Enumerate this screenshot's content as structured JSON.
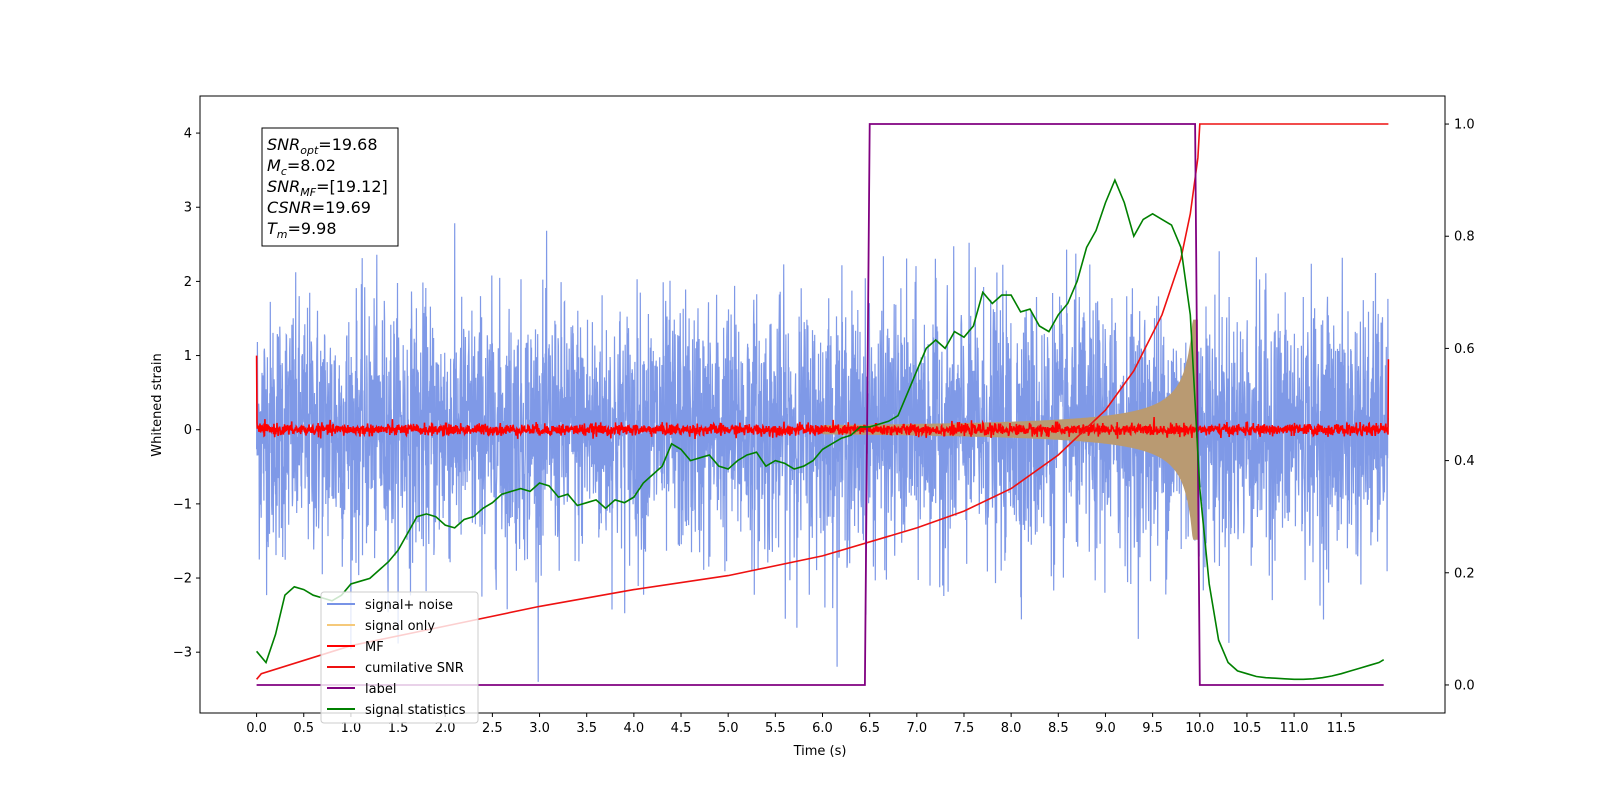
{
  "chart_data": {
    "type": "line",
    "xlabel": "Time (s)",
    "ylabel": "Whitened strain",
    "xlim": [
      -0.6,
      12.6
    ],
    "ylim": [
      -3.82,
      4.5
    ],
    "y2lim": [
      -0.05,
      1.05
    ],
    "x_ticks": [
      "0.0",
      "0.5",
      "1.0",
      "1.5",
      "2.0",
      "2.5",
      "3.0",
      "3.5",
      "4.0",
      "4.5",
      "5.0",
      "5.5",
      "6.0",
      "6.5",
      "7.0",
      "7.5",
      "8.0",
      "8.5",
      "9.0",
      "9.5",
      "10.0",
      "10.5",
      "11.0",
      "11.5"
    ],
    "y_ticks": [
      "−3",
      "−2",
      "−1",
      "0",
      "1",
      "2",
      "3",
      "4"
    ],
    "y2_ticks": [
      "0.0",
      "0.2",
      "0.4",
      "0.6",
      "0.8",
      "1.0"
    ],
    "annotation_box": [
      {
        "sym": "SNR",
        "sub": "opt",
        "val": "=19.68"
      },
      {
        "sym": "M",
        "sub": "c",
        "val": "=8.02"
      },
      {
        "sym": "SNR",
        "sub": "MF",
        "val": "=[19.12]"
      },
      {
        "sym": "CSNR",
        "sub": "",
        "val": "=19.69"
      },
      {
        "sym": "T",
        "sub": "m",
        "val": "=9.98"
      }
    ],
    "legend_placement": "lower-left",
    "series": [
      {
        "name": "signal+ noise",
        "color": "#7893e6",
        "axis": "left",
        "noise_std": 0.85,
        "duration": 12.0
      },
      {
        "name": "signal only",
        "color": "#f5c97a",
        "axis": "left",
        "chirp_end": 9.98,
        "peak_amplitude": 1.1
      },
      {
        "name": "MF",
        "color": "#ff0000",
        "axis": "left",
        "noise_std": 0.04
      },
      {
        "name": "cumilative SNR",
        "color": "#ee1111",
        "axis": "right",
        "x": [
          0.0,
          0.05,
          1.0,
          2.0,
          3.0,
          4.0,
          5.0,
          6.0,
          7.0,
          7.5,
          8.0,
          8.5,
          9.0,
          9.3,
          9.6,
          9.8,
          9.9,
          9.98,
          10.0,
          11.0,
          12.0
        ],
        "y": [
          0.01,
          0.02,
          0.07,
          0.105,
          0.14,
          0.17,
          0.195,
          0.23,
          0.28,
          0.31,
          0.35,
          0.41,
          0.49,
          0.56,
          0.66,
          0.76,
          0.84,
          0.94,
          1.0,
          1.0,
          1.0
        ]
      },
      {
        "name": "label",
        "color": "#800080",
        "axis": "right",
        "x": [
          0.0,
          6.45,
          6.5,
          9.95,
          10.0,
          11.95
        ],
        "y": [
          0,
          0,
          1,
          1,
          0,
          0
        ]
      },
      {
        "name": "signal statistics",
        "color": "#008000",
        "axis": "right",
        "x": [
          0.0,
          0.1,
          0.2,
          0.3,
          0.4,
          0.5,
          0.6,
          0.7,
          0.8,
          0.9,
          1.0,
          1.1,
          1.2,
          1.3,
          1.4,
          1.5,
          1.6,
          1.7,
          1.8,
          1.9,
          2.0,
          2.1,
          2.2,
          2.3,
          2.4,
          2.5,
          2.6,
          2.7,
          2.8,
          2.9,
          3.0,
          3.1,
          3.2,
          3.3,
          3.4,
          3.5,
          3.6,
          3.7,
          3.8,
          3.9,
          4.0,
          4.1,
          4.2,
          4.3,
          4.4,
          4.5,
          4.6,
          4.7,
          4.8,
          4.9,
          5.0,
          5.1,
          5.2,
          5.3,
          5.4,
          5.5,
          5.6,
          5.7,
          5.8,
          5.9,
          6.0,
          6.1,
          6.2,
          6.3,
          6.4,
          6.5,
          6.6,
          6.7,
          6.8,
          6.9,
          7.0,
          7.1,
          7.2,
          7.3,
          7.4,
          7.5,
          7.6,
          7.7,
          7.8,
          7.9,
          8.0,
          8.1,
          8.2,
          8.3,
          8.4,
          8.5,
          8.6,
          8.7,
          8.8,
          8.9,
          9.0,
          9.1,
          9.2,
          9.3,
          9.4,
          9.5,
          9.6,
          9.7,
          9.8,
          9.9,
          10.0,
          10.1,
          10.2,
          10.3,
          10.4,
          10.5,
          10.6,
          10.7,
          10.8,
          10.9,
          11.0,
          11.1,
          11.2,
          11.3,
          11.4,
          11.5,
          11.6,
          11.7,
          11.8,
          11.9,
          11.95
        ],
        "y": [
          0.06,
          0.04,
          0.09,
          0.16,
          0.175,
          0.17,
          0.16,
          0.155,
          0.15,
          0.16,
          0.18,
          0.185,
          0.19,
          0.205,
          0.22,
          0.24,
          0.27,
          0.3,
          0.305,
          0.3,
          0.285,
          0.28,
          0.295,
          0.3,
          0.315,
          0.325,
          0.34,
          0.345,
          0.35,
          0.345,
          0.36,
          0.355,
          0.335,
          0.34,
          0.32,
          0.325,
          0.33,
          0.315,
          0.33,
          0.325,
          0.335,
          0.36,
          0.375,
          0.39,
          0.43,
          0.42,
          0.4,
          0.405,
          0.41,
          0.39,
          0.385,
          0.4,
          0.41,
          0.415,
          0.39,
          0.4,
          0.395,
          0.385,
          0.39,
          0.4,
          0.42,
          0.43,
          0.44,
          0.445,
          0.46,
          0.46,
          0.465,
          0.47,
          0.48,
          0.52,
          0.56,
          0.6,
          0.615,
          0.6,
          0.63,
          0.62,
          0.64,
          0.7,
          0.68,
          0.695,
          0.695,
          0.665,
          0.67,
          0.64,
          0.63,
          0.66,
          0.68,
          0.72,
          0.78,
          0.81,
          0.86,
          0.9,
          0.86,
          0.8,
          0.83,
          0.84,
          0.83,
          0.82,
          0.78,
          0.66,
          0.35,
          0.18,
          0.08,
          0.04,
          0.025,
          0.02,
          0.015,
          0.013,
          0.012,
          0.011,
          0.01,
          0.01,
          0.011,
          0.013,
          0.016,
          0.02,
          0.025,
          0.03,
          0.035,
          0.04,
          0.045
        ]
      }
    ]
  }
}
